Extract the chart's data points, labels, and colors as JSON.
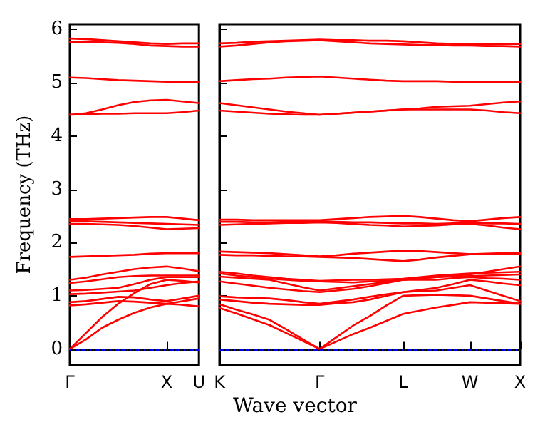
{
  "chart_data": [
    {
      "type": "line",
      "ylabel": "Frequency (THz)",
      "categories": [
        "Γ",
        null,
        null,
        null,
        null,
        null,
        "X",
        null,
        "U"
      ],
      "ylim": [
        -0.3,
        6.1
      ],
      "yticks": [
        0,
        1,
        2,
        3,
        4,
        5,
        6
      ],
      "grid": false,
      "legend": false,
      "marker": "none",
      "line_style": "solid",
      "ref_lines": [
        {
          "axis": "y",
          "value": 0,
          "color": "#0000ff",
          "line_style": "dotted"
        }
      ],
      "series": [
        {
          "color": "#ff0000",
          "values": [
            0,
            0.18,
            0.4,
            0.55,
            0.68,
            0.78,
            0.85,
            0.83,
            0.8
          ]
        },
        {
          "color": "#ff0000",
          "values": [
            0,
            0.3,
            0.6,
            0.85,
            1.05,
            1.22,
            1.3,
            1.28,
            1.25
          ]
        },
        {
          "color": "#ff0000",
          "values": [
            0.82,
            0.84,
            0.87,
            0.9,
            0.89,
            0.87,
            0.85,
            0.9,
            0.95
          ]
        },
        {
          "color": "#ff0000",
          "values": [
            0.88,
            0.9,
            0.94,
            0.98,
            0.97,
            0.93,
            0.9,
            0.95,
            1.0
          ]
        },
        {
          "color": "#ff0000",
          "values": [
            1.03,
            1.04,
            1.06,
            1.08,
            1.1,
            1.15,
            1.2,
            1.24,
            1.27
          ]
        },
        {
          "color": "#ff0000",
          "values": [
            1.1,
            1.11,
            1.13,
            1.15,
            1.22,
            1.3,
            1.35,
            1.35,
            1.35
          ]
        },
        {
          "color": "#ff0000",
          "values": [
            1.24,
            1.27,
            1.31,
            1.35,
            1.37,
            1.38,
            1.38,
            1.38,
            1.38
          ]
        },
        {
          "color": "#ff0000",
          "values": [
            1.3,
            1.34,
            1.4,
            1.45,
            1.5,
            1.53,
            1.55,
            1.51,
            1.46
          ]
        },
        {
          "color": "#ff0000",
          "values": [
            1.73,
            1.74,
            1.75,
            1.76,
            1.77,
            1.79,
            1.8,
            1.8,
            1.8
          ]
        },
        {
          "color": "#ff0000",
          "values": [
            2.35,
            2.35,
            2.34,
            2.33,
            2.31,
            2.28,
            2.25,
            2.26,
            2.27
          ]
        },
        {
          "color": "#ff0000",
          "values": [
            2.4,
            2.4,
            2.39,
            2.38,
            2.37,
            2.36,
            2.35,
            2.34,
            2.33
          ]
        },
        {
          "color": "#ff0000",
          "values": [
            2.44,
            2.44,
            2.45,
            2.46,
            2.47,
            2.48,
            2.48,
            2.45,
            2.42
          ]
        },
        {
          "color": "#ff0000",
          "values": [
            4.4,
            4.41,
            4.42,
            4.42,
            4.43,
            4.43,
            4.43,
            4.45,
            4.48
          ]
        },
        {
          "color": "#ff0000",
          "values": [
            4.4,
            4.43,
            4.5,
            4.58,
            4.64,
            4.67,
            4.68,
            4.65,
            4.62
          ]
        },
        {
          "color": "#ff0000",
          "values": [
            5.1,
            5.09,
            5.07,
            5.05,
            5.04,
            5.03,
            5.02,
            5.02,
            5.02
          ]
        },
        {
          "color": "#ff0000",
          "values": [
            5.77,
            5.77,
            5.76,
            5.75,
            5.73,
            5.7,
            5.69,
            5.68,
            5.68
          ]
        },
        {
          "color": "#ff0000",
          "values": [
            5.83,
            5.82,
            5.8,
            5.78,
            5.76,
            5.74,
            5.73,
            5.74,
            5.74
          ]
        }
      ]
    },
    {
      "type": "line",
      "xlabel": "Wave vector",
      "categories": [
        "K",
        null,
        null,
        null,
        null,
        null,
        "Γ",
        null,
        null,
        null,
        null,
        "L",
        null,
        null,
        null,
        "W",
        null,
        null,
        "X"
      ],
      "ylim": [
        -0.3,
        6.1
      ],
      "yticks": [
        {
          "value": 0,
          "label": null
        },
        {
          "value": 1,
          "label": null
        },
        {
          "value": 2,
          "label": null
        },
        {
          "value": 3,
          "label": null
        },
        {
          "value": 4,
          "label": null
        },
        {
          "value": 5,
          "label": null
        },
        {
          "value": 6,
          "label": null
        }
      ],
      "tick_labels": "x",
      "grid": false,
      "legend": false,
      "marker": "none",
      "line_style": "solid",
      "ref_lines": [
        {
          "axis": "y",
          "value": 0,
          "color": "#0000ff",
          "line_style": "dotted"
        }
      ],
      "series": [
        {
          "color": "#ff0000",
          "values": [
            0.77,
            0.67,
            0.56,
            0.45,
            0.3,
            0.15,
            0,
            0.14,
            0.28,
            0.4,
            0.53,
            0.66,
            0.72,
            0.78,
            0.83,
            0.88,
            0.87,
            0.86,
            0.85
          ]
        },
        {
          "color": "#ff0000",
          "values": [
            0.84,
            0.74,
            0.65,
            0.55,
            0.37,
            0.18,
            0,
            0.22,
            0.44,
            0.62,
            0.82,
            1.0,
            1.01,
            1.02,
            1.01,
            1.0,
            0.95,
            0.9,
            0.85
          ]
        },
        {
          "color": "#ff0000",
          "values": [
            0.93,
            0.9,
            0.87,
            0.85,
            0.84,
            0.83,
            0.83,
            0.86,
            0.88,
            0.93,
            1.0,
            1.07,
            1.09,
            1.1,
            1.15,
            1.2,
            1.1,
            1.0,
            0.9
          ]
        },
        {
          "color": "#ff0000",
          "values": [
            0.99,
            0.97,
            0.96,
            0.95,
            0.92,
            0.88,
            0.85,
            0.89,
            0.93,
            0.98,
            1.03,
            1.07,
            1.11,
            1.15,
            1.22,
            1.3,
            1.27,
            1.23,
            1.2
          ]
        },
        {
          "color": "#ff0000",
          "values": [
            1.27,
            1.23,
            1.19,
            1.15,
            1.12,
            1.09,
            1.07,
            1.1,
            1.13,
            1.18,
            1.24,
            1.3,
            1.3,
            1.3,
            1.33,
            1.35,
            1.33,
            1.32,
            1.3
          ]
        },
        {
          "color": "#ff0000",
          "values": [
            1.36,
            1.34,
            1.32,
            1.3,
            1.23,
            1.16,
            1.1,
            1.14,
            1.18,
            1.22,
            1.26,
            1.3,
            1.33,
            1.35,
            1.36,
            1.37,
            1.38,
            1.39,
            1.4
          ]
        },
        {
          "color": "#ff0000",
          "values": [
            1.42,
            1.38,
            1.35,
            1.32,
            1.3,
            1.28,
            1.27,
            1.26,
            1.25,
            1.27,
            1.28,
            1.3,
            1.33,
            1.35,
            1.38,
            1.4,
            1.45,
            1.5,
            1.55
          ]
        },
        {
          "color": "#ff0000",
          "values": [
            1.45,
            1.42,
            1.38,
            1.35,
            1.32,
            1.3,
            1.28,
            1.29,
            1.3,
            1.3,
            1.31,
            1.32,
            1.35,
            1.38,
            1.4,
            1.42,
            1.43,
            1.44,
            1.45
          ]
        },
        {
          "color": "#ff0000",
          "values": [
            1.77,
            1.76,
            1.76,
            1.75,
            1.74,
            1.74,
            1.73,
            1.72,
            1.71,
            1.69,
            1.67,
            1.65,
            1.68,
            1.72,
            1.75,
            1.78,
            1.78,
            1.78,
            1.78
          ]
        },
        {
          "color": "#ff0000",
          "values": [
            1.83,
            1.82,
            1.81,
            1.8,
            1.78,
            1.76,
            1.74,
            1.76,
            1.79,
            1.81,
            1.83,
            1.85,
            1.84,
            1.82,
            1.8,
            1.78,
            1.79,
            1.8,
            1.8
          ]
        },
        {
          "color": "#ff0000",
          "values": [
            2.33,
            2.34,
            2.35,
            2.36,
            2.37,
            2.37,
            2.38,
            2.37,
            2.35,
            2.33,
            2.32,
            2.3,
            2.31,
            2.32,
            2.34,
            2.35,
            2.32,
            2.28,
            2.25
          ]
        },
        {
          "color": "#ff0000",
          "values": [
            2.39,
            2.39,
            2.38,
            2.38,
            2.39,
            2.39,
            2.4,
            2.39,
            2.38,
            2.38,
            2.37,
            2.36,
            2.36,
            2.35,
            2.36,
            2.37,
            2.36,
            2.36,
            2.35
          ]
        },
        {
          "color": "#ff0000",
          "values": [
            2.43,
            2.43,
            2.42,
            2.42,
            2.42,
            2.42,
            2.42,
            2.44,
            2.46,
            2.48,
            2.49,
            2.5,
            2.48,
            2.45,
            2.42,
            2.4,
            2.43,
            2.46,
            2.48
          ]
        },
        {
          "color": "#ff0000",
          "values": [
            4.48,
            4.46,
            4.44,
            4.42,
            4.41,
            4.4,
            4.4,
            4.42,
            4.44,
            4.46,
            4.48,
            4.5,
            4.5,
            4.5,
            4.5,
            4.5,
            4.48,
            4.45,
            4.43
          ]
        },
        {
          "color": "#ff0000",
          "values": [
            4.62,
            4.58,
            4.54,
            4.5,
            4.46,
            4.43,
            4.4,
            4.42,
            4.44,
            4.46,
            4.48,
            4.5,
            4.52,
            4.55,
            4.56,
            4.57,
            4.6,
            4.63,
            4.65
          ]
        },
        {
          "color": "#ff0000",
          "values": [
            5.03,
            5.05,
            5.07,
            5.08,
            5.1,
            5.11,
            5.12,
            5.1,
            5.08,
            5.06,
            5.04,
            5.03,
            5.03,
            5.03,
            5.02,
            5.02,
            5.02,
            5.02,
            5.02
          ]
        },
        {
          "color": "#ff0000",
          "values": [
            5.68,
            5.7,
            5.73,
            5.76,
            5.78,
            5.79,
            5.8,
            5.78,
            5.76,
            5.74,
            5.73,
            5.72,
            5.71,
            5.71,
            5.7,
            5.7,
            5.69,
            5.69,
            5.68
          ]
        },
        {
          "color": "#ff0000",
          "values": [
            5.74,
            5.75,
            5.77,
            5.78,
            5.79,
            5.8,
            5.81,
            5.8,
            5.8,
            5.79,
            5.79,
            5.78,
            5.76,
            5.74,
            5.73,
            5.72,
            5.72,
            5.73,
            5.73
          ]
        }
      ]
    }
  ]
}
